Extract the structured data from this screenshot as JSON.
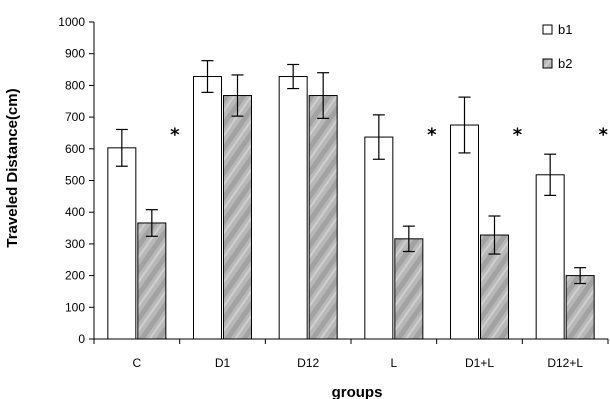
{
  "chart_data": {
    "type": "bar",
    "xlabel": "groups",
    "ylabel": "Traveled Distance(cm)",
    "ylim": [
      0,
      1000
    ],
    "ytick_step": 100,
    "categories": [
      "C",
      "D1",
      "D12",
      "L",
      "D1+L",
      "D12+L"
    ],
    "series": [
      {
        "name": "b1",
        "color": "#ffffff",
        "values": [
          603,
          828,
          828,
          637,
          675,
          518
        ],
        "error": [
          58,
          50,
          38,
          70,
          88,
          65
        ]
      },
      {
        "name": "b2",
        "color": "#b3b3b3",
        "values": [
          366,
          768,
          768,
          316,
          328,
          200
        ],
        "error": [
          42,
          65,
          72,
          40,
          60,
          25
        ]
      }
    ],
    "annotations": [
      {
        "text": "*",
        "category": "C"
      },
      {
        "text": "*",
        "category": "L"
      },
      {
        "text": "*",
        "category": "D1+L"
      },
      {
        "text": "*",
        "category": "D12+L"
      }
    ],
    "legend_position": "top-right",
    "grid": false
  }
}
